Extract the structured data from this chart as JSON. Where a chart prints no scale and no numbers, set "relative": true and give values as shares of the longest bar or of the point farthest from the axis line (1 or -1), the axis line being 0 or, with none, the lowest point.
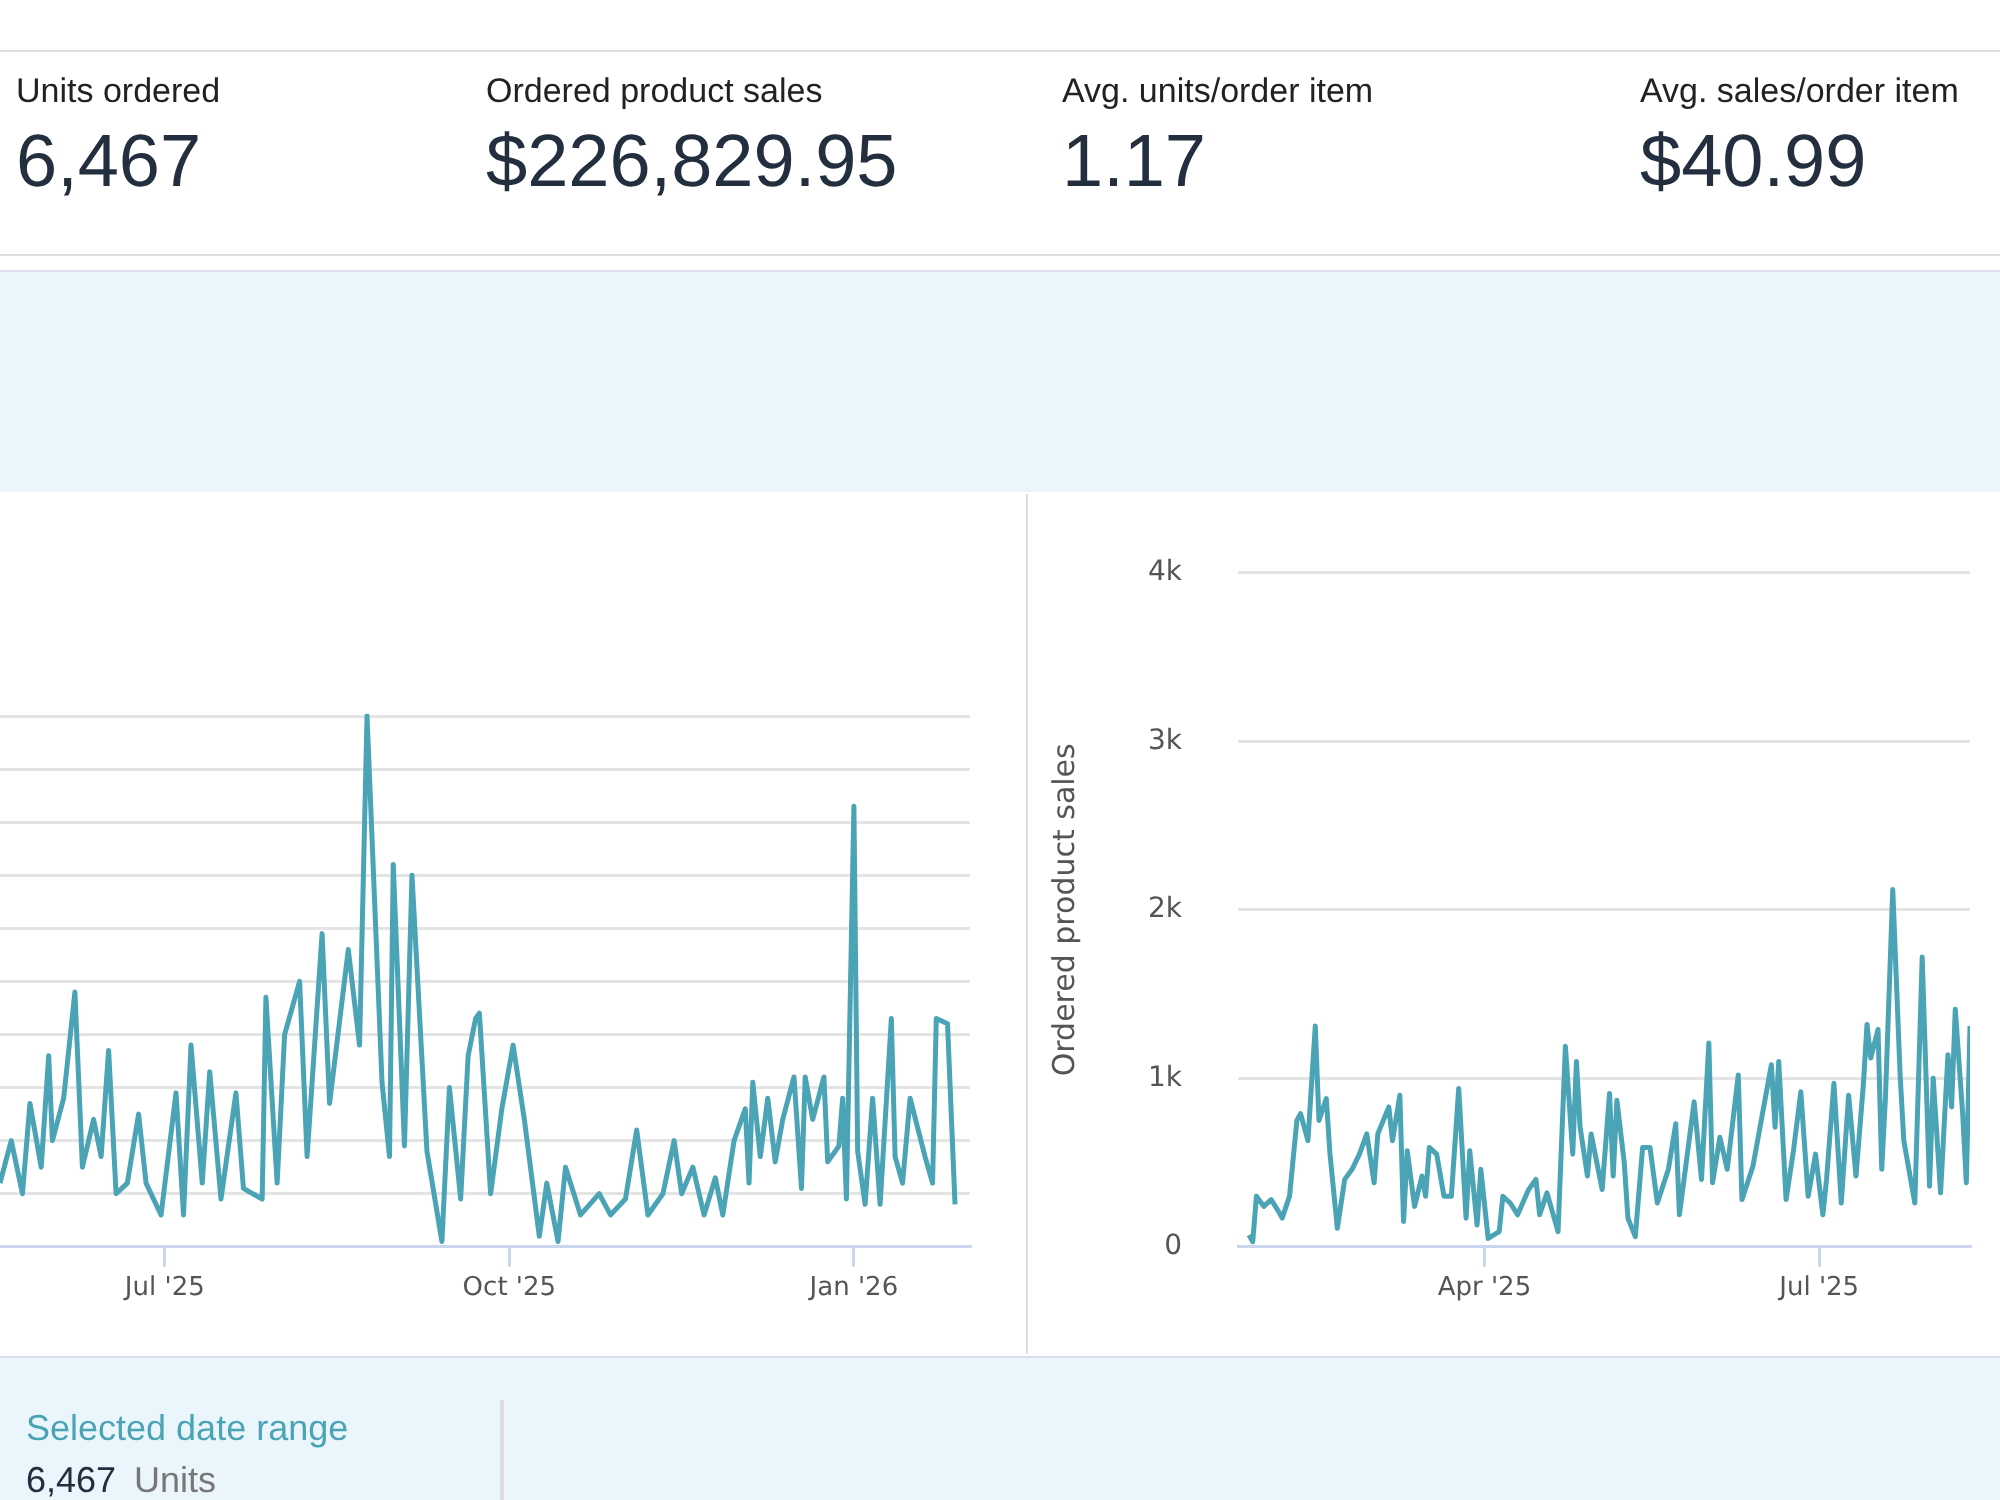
{
  "chart_data": [
    {
      "type": "other",
      "annotations": [
        "Units ordered",
        "6,467",
        "Ordered product sales",
        "$226,829.95",
        "Avg. units/order item",
        "1.17",
        "Avg. sales/order item",
        "$40.99"
      ]
    },
    {
      "type": "line",
      "relative": true,
      "grid": "y",
      "marker": "none",
      "line_style": "solid",
      "xlim": [
        "2025-05-18",
        "2026-02-01"
      ],
      "xticks": [
        {
          "value": "2025-07-01",
          "label": "Jul '25"
        },
        {
          "value": "2025-10-01",
          "label": "Oct '25"
        },
        {
          "value": "2026-01-01",
          "label": "Jan '26"
        }
      ],
      "series": [
        {
          "color": "#4ba3b6",
          "x": [
            "2025-05-18",
            "2025-05-21",
            "2025-05-24",
            "2025-05-26",
            "2025-05-29",
            "2025-05-31",
            "2025-06-01",
            "2025-06-04",
            "2025-06-07",
            "2025-06-09",
            "2025-06-12",
            "2025-06-14",
            "2025-06-16",
            "2025-06-18",
            "2025-06-21",
            "2025-06-24",
            "2025-06-26",
            "2025-06-30",
            "2025-07-04",
            "2025-07-06",
            "2025-07-08",
            "2025-07-11",
            "2025-07-13",
            "2025-07-16",
            "2025-07-20",
            "2025-07-22",
            "2025-07-27",
            "2025-07-28",
            "2025-07-31",
            "2025-08-02",
            "2025-08-06",
            "2025-08-08",
            "2025-08-12",
            "2025-08-14",
            "2025-08-19",
            "2025-08-22",
            "2025-08-24",
            "2025-08-28",
            "2025-08-30",
            "2025-08-31",
            "2025-09-03",
            "2025-09-05",
            "2025-09-09",
            "2025-09-13",
            "2025-09-15",
            "2025-09-18",
            "2025-09-20",
            "2025-09-22",
            "2025-09-23",
            "2025-09-26",
            "2025-09-29",
            "2025-10-02",
            "2025-10-05",
            "2025-10-09",
            "2025-10-11",
            "2025-10-14",
            "2025-10-16",
            "2025-10-20",
            "2025-10-25",
            "2025-10-28",
            "2025-11-01",
            "2025-11-04",
            "2025-11-07",
            "2025-11-11",
            "2025-11-14",
            "2025-11-16",
            "2025-11-19",
            "2025-11-22",
            "2025-11-25",
            "2025-11-27",
            "2025-11-30",
            "2025-12-03",
            "2025-12-04",
            "2025-12-05",
            "2025-12-07",
            "2025-12-09",
            "2025-12-11",
            "2025-12-13",
            "2025-12-16",
            "2025-12-18",
            "2025-12-19",
            "2025-12-21",
            "2025-12-24",
            "2025-12-25",
            "2025-12-28",
            "2025-12-29",
            "2025-12-30",
            "2026-01-01",
            "2026-01-02",
            "2026-01-04",
            "2026-01-06",
            "2026-01-08",
            "2026-01-11",
            "2026-01-12",
            "2026-01-14",
            "2026-01-16",
            "2026-01-20",
            "2026-01-22",
            "2026-01-23",
            "2026-01-26",
            "2026-01-28"
          ],
          "values": [
            0.12,
            0.2,
            0.1,
            0.27,
            0.15,
            0.36,
            0.2,
            0.28,
            0.48,
            0.15,
            0.24,
            0.17,
            0.37,
            0.1,
            0.12,
            0.25,
            0.12,
            0.06,
            0.29,
            0.06,
            0.38,
            0.12,
            0.33,
            0.09,
            0.29,
            0.11,
            0.09,
            0.47,
            0.12,
            0.4,
            0.5,
            0.17,
            0.59,
            0.27,
            0.56,
            0.38,
            1,
            0.31,
            0.17,
            0.72,
            0.19,
            0.7,
            0.18,
            0.01,
            0.3,
            0.09,
            0.36,
            0.43,
            0.44,
            0.1,
            0.26,
            0.38,
            0.24,
            0.02,
            0.12,
            0.01,
            0.15,
            0.06,
            0.1,
            0.06,
            0.09,
            0.22,
            0.06,
            0.1,
            0.2,
            0.1,
            0.15,
            0.06,
            0.13,
            0.06,
            0.2,
            0.26,
            0.12,
            0.31,
            0.17,
            0.28,
            0.16,
            0.24,
            0.32,
            0.11,
            0.32,
            0.24,
            0.32,
            0.16,
            0.19,
            0.28,
            0.09,
            0.83,
            0.18,
            0.08,
            0.28,
            0.08,
            0.43,
            0.17,
            0.12,
            0.28,
            0.17,
            0.12,
            0.43,
            0.42,
            0.08
          ]
        }
      ]
    },
    {
      "type": "line",
      "ylabel": "Ordered product sales",
      "grid": "y",
      "marker": "none",
      "line_style": "solid",
      "xlim": [
        "2025-01-24",
        "2025-08-11"
      ],
      "xticks": [
        {
          "value": "2025-04-01",
          "label": "Apr '25"
        },
        {
          "value": "2025-07-01",
          "label": "Jul '25"
        }
      ],
      "ylim": [
        0,
        4000
      ],
      "yticks": [
        0,
        {
          "value": 1000,
          "label": "1k"
        },
        {
          "value": 2000,
          "label": "2k"
        },
        {
          "value": 3000,
          "label": "3k"
        },
        {
          "value": 4000,
          "label": "4k"
        }
      ],
      "series": [
        {
          "color": "#4ba3b6",
          "x": [
            "2025-01-27",
            "2025-01-28",
            "2025-01-29",
            "2025-01-31",
            "2025-02-02",
            "2025-02-04",
            "2025-02-05",
            "2025-02-07",
            "2025-02-09",
            "2025-02-10",
            "2025-02-12",
            "2025-02-14",
            "2025-02-15",
            "2025-02-17",
            "2025-02-18",
            "2025-02-20",
            "2025-02-22",
            "2025-02-24",
            "2025-02-26",
            "2025-02-28",
            "2025-03-02",
            "2025-03-03",
            "2025-03-06",
            "2025-03-07",
            "2025-03-09",
            "2025-03-10",
            "2025-03-11",
            "2025-03-13",
            "2025-03-15",
            "2025-03-16",
            "2025-03-17",
            "2025-03-19",
            "2025-03-21",
            "2025-03-23",
            "2025-03-25",
            "2025-03-27",
            "2025-03-28",
            "2025-03-30",
            "2025-03-31",
            "2025-04-02",
            "2025-04-05",
            "2025-04-06",
            "2025-04-08",
            "2025-04-10",
            "2025-04-13",
            "2025-04-15",
            "2025-04-16",
            "2025-04-18",
            "2025-04-21",
            "2025-04-23",
            "2025-04-25",
            "2025-04-26",
            "2025-04-27",
            "2025-04-29",
            "2025-04-30",
            "2025-05-03",
            "2025-05-05",
            "2025-05-06",
            "2025-05-07",
            "2025-05-09",
            "2025-05-10",
            "2025-05-12",
            "2025-05-14",
            "2025-05-16",
            "2025-05-18",
            "2025-05-21",
            "2025-05-23",
            "2025-05-24",
            "2025-05-28",
            "2025-05-30",
            "2025-06-01",
            "2025-06-02",
            "2025-06-04",
            "2025-06-06",
            "2025-06-09",
            "2025-06-10",
            "2025-06-13",
            "2025-06-18",
            "2025-06-19",
            "2025-06-20",
            "2025-06-22",
            "2025-06-24",
            "2025-06-26",
            "2025-06-28",
            "2025-06-30",
            "2025-07-02",
            "2025-07-03",
            "2025-07-05",
            "2025-07-07",
            "2025-07-09",
            "2025-07-11",
            "2025-07-13",
            "2025-07-14",
            "2025-07-15",
            "2025-07-17",
            "2025-07-18",
            "2025-07-19",
            "2025-07-21",
            "2025-07-23",
            "2025-07-24",
            "2025-07-27",
            "2025-07-29",
            "2025-07-31",
            "2025-08-01",
            "2025-08-03",
            "2025-08-05",
            "2025-08-06",
            "2025-08-07",
            "2025-08-09",
            "2025-08-10",
            "2025-08-11"
          ],
          "values": [
            70,
            30,
            300,
            240,
            280,
            210,
            170,
            300,
            750,
            790,
            630,
            1310,
            750,
            880,
            550,
            110,
            400,
            460,
            550,
            670,
            380,
            670,
            830,
            630,
            900,
            150,
            570,
            240,
            420,
            300,
            590,
            550,
            300,
            300,
            940,
            170,
            570,
            130,
            460,
            50,
            90,
            300,
            260,
            190,
            340,
            400,
            190,
            320,
            90,
            1190,
            550,
            1100,
            710,
            420,
            670,
            340,
            910,
            420,
            870,
            500,
            170,
            60,
            590,
            590,
            260,
            460,
            730,
            190,
            860,
            400,
            1210,
            380,
            650,
            460,
            1020,
            280,
            480,
            1080,
            710,
            1100,
            280,
            570,
            920,
            300,
            550,
            190,
            400,
            970,
            260,
            900,
            420,
            960,
            1320,
            1120,
            1290,
            460,
            880,
            2120,
            1020,
            630,
            260,
            1720,
            360,
            1000,
            320,
            1140,
            830,
            1410,
            790,
            380,
            1310
          ]
        }
      ]
    },
    {
      "type": "other",
      "annotations": [
        "Selected date range",
        "6,467",
        "Units"
      ]
    }
  ]
}
